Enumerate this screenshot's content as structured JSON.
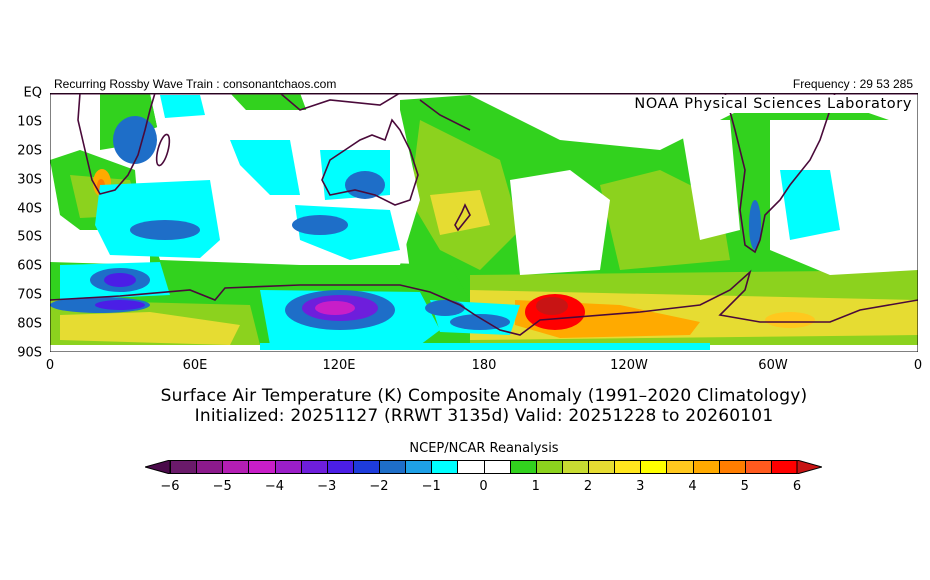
{
  "header": {
    "left_text": "Recurring Rossby Wave Train : consonantchaos.com",
    "right_text": "Frequency : 29 53 285",
    "lab_label": "NOAA Physical Sciences Laboratory"
  },
  "map": {
    "lat_labels": [
      "EQ",
      "10S",
      "20S",
      "30S",
      "40S",
      "50S",
      "60S",
      "70S",
      "80S",
      "90S"
    ],
    "lon_labels": [
      "0",
      "60E",
      "120E",
      "180",
      "120W",
      "60W",
      "0"
    ]
  },
  "title": {
    "line1": "Surface Air Temperature (K) Composite Anomaly (1991–2020 Climatology)",
    "line2": "Initialized: 20251127 (RRWT 3135d) Valid: 20251228 to 20260101"
  },
  "colorbar": {
    "label": "NCEP/NCAR Reanalysis",
    "ticks": [
      "-6",
      "-5",
      "-4",
      "-3",
      "-2",
      "-1",
      "0",
      "1",
      "2",
      "3",
      "4",
      "5",
      "6"
    ],
    "colors": [
      "#6a1a6a",
      "#8c1a8c",
      "#b41eb4",
      "#c81ec8",
      "#9b1ec8",
      "#6e1edc",
      "#4b1ee6",
      "#1e3cdc",
      "#1e6ec8",
      "#1ea0e6",
      "#00ffff",
      "#ffffff",
      "#ffffff",
      "#32d21e",
      "#8cd21e",
      "#c8dc32",
      "#e6dc32",
      "#ffe61e",
      "#ffff00",
      "#ffc81e",
      "#ffaa00",
      "#ff7d00",
      "#ff5a1e",
      "#ff0000"
    ],
    "low_arrow_color": "#4a0a4a",
    "high_arrow_color": "#c81414"
  }
}
